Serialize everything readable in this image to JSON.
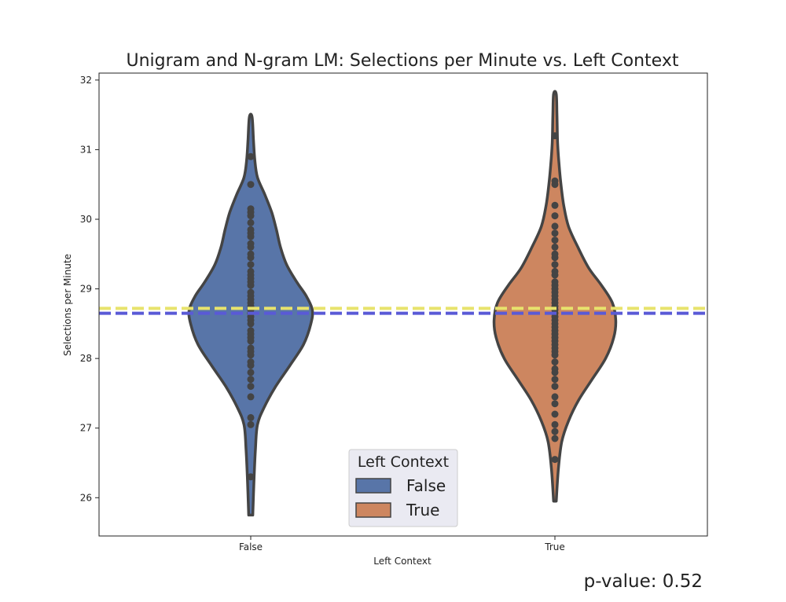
{
  "chart_data": {
    "type": "violin",
    "title": "Unigram and N-gram LM: Selections per Minute vs. Left Context",
    "xlabel": "Left Context",
    "ylabel": "Selections per Minute",
    "categories": [
      "False",
      "True"
    ],
    "ylim": [
      25.45,
      32.1
    ],
    "yticks": [
      26,
      27,
      28,
      29,
      30,
      31,
      32
    ],
    "grid": false,
    "series": [
      {
        "category": "False",
        "color": "#5875a8",
        "range": [
          25.75,
          31.47
        ],
        "profile": [
          [
            25.75,
            0.03
          ],
          [
            26.3,
            0.05
          ],
          [
            26.7,
            0.07
          ],
          [
            27.05,
            0.1
          ],
          [
            27.3,
            0.2
          ],
          [
            27.6,
            0.37
          ],
          [
            27.9,
            0.58
          ],
          [
            28.2,
            0.78
          ],
          [
            28.5,
            0.89
          ],
          [
            28.7,
            0.91
          ],
          [
            28.9,
            0.82
          ],
          [
            29.1,
            0.68
          ],
          [
            29.35,
            0.53
          ],
          [
            29.6,
            0.44
          ],
          [
            29.85,
            0.38
          ],
          [
            30.1,
            0.31
          ],
          [
            30.35,
            0.21
          ],
          [
            30.6,
            0.1
          ],
          [
            30.85,
            0.06
          ],
          [
            31.15,
            0.04
          ],
          [
            31.47,
            0.02
          ]
        ],
        "points": [
          26.3,
          27.05,
          27.15,
          27.45,
          27.6,
          27.7,
          27.8,
          27.9,
          27.95,
          28.05,
          28.1,
          28.15,
          28.25,
          28.3,
          28.35,
          28.4,
          28.5,
          28.55,
          28.6,
          28.65,
          28.7,
          28.75,
          28.8,
          28.85,
          28.9,
          28.95,
          29.05,
          29.1,
          29.15,
          29.2,
          29.25,
          29.35,
          29.45,
          29.5,
          29.6,
          29.65,
          29.75,
          29.8,
          29.85,
          29.95,
          30.05,
          30.1,
          30.15,
          30.5,
          30.9
        ]
      },
      {
        "category": "True",
        "color": "#cd8660",
        "range": [
          25.95,
          31.8
        ],
        "profile": [
          [
            25.95,
            0.02
          ],
          [
            26.4,
            0.05
          ],
          [
            26.8,
            0.1
          ],
          [
            27.1,
            0.2
          ],
          [
            27.4,
            0.35
          ],
          [
            27.7,
            0.55
          ],
          [
            28.0,
            0.75
          ],
          [
            28.3,
            0.87
          ],
          [
            28.55,
            0.9
          ],
          [
            28.8,
            0.85
          ],
          [
            29.05,
            0.69
          ],
          [
            29.3,
            0.5
          ],
          [
            29.6,
            0.34
          ],
          [
            29.9,
            0.2
          ],
          [
            30.2,
            0.13
          ],
          [
            30.5,
            0.09
          ],
          [
            30.8,
            0.06
          ],
          [
            31.1,
            0.04
          ],
          [
            31.5,
            0.03
          ],
          [
            31.8,
            0.02
          ]
        ],
        "points": [
          26.55,
          26.85,
          26.95,
          27.05,
          27.2,
          27.35,
          27.45,
          27.6,
          27.7,
          27.8,
          27.85,
          27.95,
          28.05,
          28.1,
          28.15,
          28.2,
          28.25,
          28.3,
          28.35,
          28.4,
          28.45,
          28.5,
          28.55,
          28.6,
          28.65,
          28.7,
          28.75,
          28.8,
          28.85,
          28.9,
          28.95,
          29.0,
          29.05,
          29.1,
          29.2,
          29.25,
          29.35,
          29.45,
          29.5,
          29.6,
          29.7,
          29.8,
          29.9,
          30.05,
          30.2,
          30.5,
          30.55,
          31.2
        ]
      }
    ],
    "reference_lines": [
      {
        "y": 28.72,
        "color": "#e8e36c",
        "style": "dashed"
      },
      {
        "y": 28.65,
        "color": "#5a5ad6",
        "style": "dashed"
      }
    ],
    "legend": {
      "title": "Left Context",
      "placement": "bottom-center",
      "entries": [
        {
          "label": "False",
          "color": "#5875a8"
        },
        {
          "label": "True",
          "color": "#cd8660"
        }
      ]
    },
    "annotation": "p-value: 0.52"
  }
}
